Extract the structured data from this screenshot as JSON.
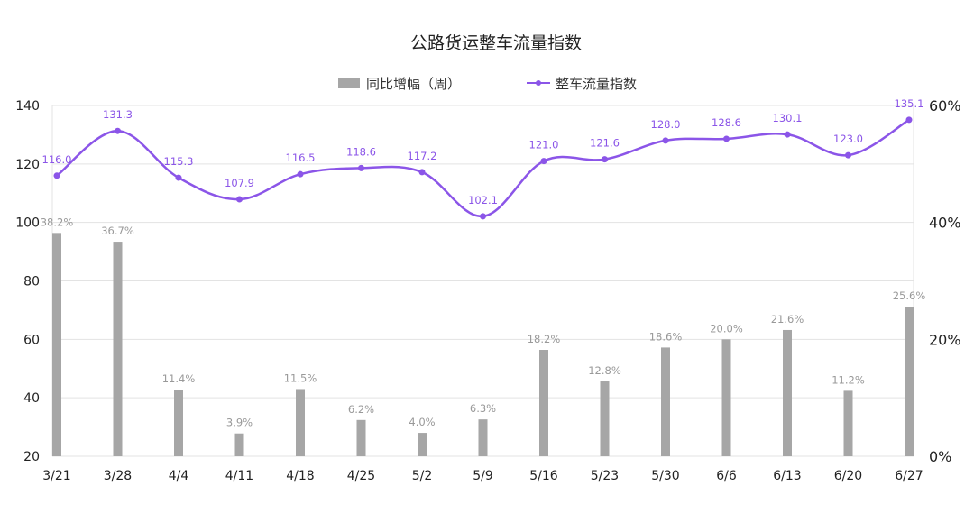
{
  "chart_data": {
    "type": "bar+line",
    "title": "公路货运整车流量指数",
    "categories": [
      "3/21",
      "3/28",
      "4/4",
      "4/11",
      "4/18",
      "4/25",
      "5/2",
      "5/9",
      "5/16",
      "5/23",
      "5/30",
      "6/6",
      "6/13",
      "6/20",
      "6/27"
    ],
    "series": [
      {
        "name": "同比增幅（周）",
        "type": "bar",
        "axis": "right",
        "unit": "%",
        "color": "#a6a6a6",
        "values": [
          38.2,
          36.7,
          11.4,
          3.9,
          11.5,
          6.2,
          4.0,
          6.3,
          18.2,
          12.8,
          18.6,
          20.0,
          21.6,
          11.2,
          25.6
        ],
        "labels": [
          "38.2%",
          "36.7%",
          "11.4%",
          "3.9%",
          "11.5%",
          "6.2%",
          "4.0%",
          "6.3%",
          "18.2%",
          "12.8%",
          "18.6%",
          "20.0%",
          "21.6%",
          "11.2%",
          "25.6%"
        ]
      },
      {
        "name": "整车流量指数",
        "type": "line",
        "axis": "left",
        "color": "#8b55e8",
        "values": [
          116.0,
          131.3,
          115.3,
          107.9,
          116.5,
          118.6,
          117.2,
          102.1,
          121.0,
          121.6,
          128.0,
          128.6,
          130.1,
          123.0,
          135.1
        ],
        "labels": [
          "116.0",
          "131.3",
          "115.3",
          "107.9",
          "116.5",
          "118.6",
          "117.2",
          "102.1",
          "121.0",
          "121.6",
          "128.0",
          "128.6",
          "130.1",
          "123.0",
          "135.1"
        ]
      }
    ],
    "left_axis": {
      "range": [
        20,
        140
      ],
      "ticks": [
        "20",
        "40",
        "60",
        "80",
        "100",
        "120",
        "140"
      ]
    },
    "right_axis": {
      "range": [
        0,
        60
      ],
      "ticks": [
        "0%",
        "20%",
        "40%",
        "60%"
      ]
    },
    "grid": true,
    "legend_position": "top-center"
  }
}
